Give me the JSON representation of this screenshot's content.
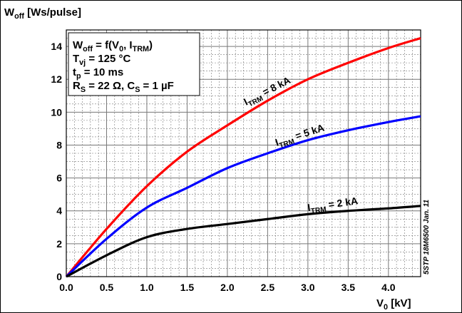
{
  "chart_data": {
    "type": "line",
    "ylabel": {
      "main": "W",
      "sub": "off",
      "rest": " [Ws/pulse]"
    },
    "xlabel": {
      "main": "V",
      "sub": "0",
      "rest": " [kV]"
    },
    "xlim": [
      0,
      4.4
    ],
    "ylim": [
      0,
      15
    ],
    "x_ticks": [
      "0.0",
      "0.5",
      "1.0",
      "1.5",
      "2.0",
      "2.5",
      "3.0",
      "3.5",
      "4.0"
    ],
    "y_ticks": [
      "0",
      "2",
      "4",
      "6",
      "8",
      "10",
      "12",
      "14"
    ],
    "grid": true,
    "conditions": [
      {
        "main": "W",
        "sub": "off",
        "rest": " = f(V",
        "sub2": "0",
        "rest2": ", I",
        "sub3": "TRM",
        "rest3": ")"
      },
      {
        "main": "T",
        "sub": "vj",
        "rest": " = 125 °C"
      },
      {
        "main": "t",
        "sub": "p",
        "rest": " = 10 ms"
      },
      {
        "main": "R",
        "sub": "S",
        "rest": " = 22 Ω, C",
        "sub2": "S",
        "rest2": " = 1 µF"
      }
    ],
    "side_note": "5STP 18M6500 Jan. 11",
    "series": [
      {
        "label": {
          "main": "I",
          "sub": "TRM",
          "rest": " = 8 kA"
        },
        "color": "#ff0000",
        "x": [
          0,
          0.5,
          1.0,
          1.5,
          2.0,
          2.5,
          3.0,
          3.5,
          4.0,
          4.4
        ],
        "y": [
          0,
          2.9,
          5.5,
          7.6,
          9.2,
          10.7,
          12.0,
          13.0,
          13.9,
          14.5
        ]
      },
      {
        "label": {
          "main": "I",
          "sub": "TRM",
          "rest": " = 5 kA"
        },
        "color": "#0000ff",
        "x": [
          0,
          0.5,
          1.0,
          1.5,
          2.0,
          2.5,
          3.0,
          3.5,
          4.0,
          4.4
        ],
        "y": [
          0,
          2.3,
          4.2,
          5.4,
          6.6,
          7.5,
          8.3,
          8.9,
          9.4,
          9.75
        ]
      },
      {
        "label": {
          "main": "I",
          "sub": "TRM",
          "rest": " = 2 kA"
        },
        "color": "#000000",
        "x": [
          0,
          0.5,
          1.0,
          1.5,
          2.0,
          2.5,
          3.0,
          3.5,
          4.0,
          4.4
        ],
        "y": [
          0,
          1.3,
          2.4,
          2.9,
          3.2,
          3.5,
          3.8,
          4.0,
          4.15,
          4.3
        ]
      }
    ]
  }
}
